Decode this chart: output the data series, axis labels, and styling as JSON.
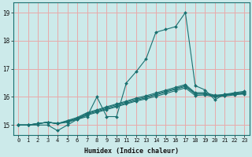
{
  "xlabel": "Humidex (Indice chaleur)",
  "bg_color": "#cceaea",
  "grid_color": "#e8aaaa",
  "line_color": "#1a7070",
  "marker_color": "#1a7070",
  "xlim": [
    -0.5,
    23.5
  ],
  "ylim": [
    14.65,
    19.35
  ],
  "yticks": [
    15,
    16,
    17,
    18,
    19
  ],
  "xticks": [
    0,
    1,
    2,
    3,
    4,
    5,
    6,
    7,
    8,
    9,
    10,
    11,
    12,
    13,
    14,
    15,
    16,
    17,
    18,
    19,
    20,
    21,
    22,
    23
  ],
  "series": [
    [
      15.0,
      15.0,
      15.0,
      15.0,
      14.8,
      15.0,
      15.2,
      15.3,
      16.0,
      15.3,
      15.3,
      16.5,
      16.9,
      17.35,
      18.3,
      18.4,
      18.5,
      19.0,
      16.4,
      16.25,
      15.9,
      16.1,
      16.1,
      16.1
    ],
    [
      15.0,
      15.0,
      15.05,
      15.1,
      15.05,
      15.1,
      15.2,
      15.35,
      15.45,
      15.55,
      15.65,
      15.75,
      15.85,
      15.93,
      16.02,
      16.12,
      16.22,
      16.32,
      16.05,
      16.07,
      16.0,
      16.03,
      16.07,
      16.12
    ],
    [
      15.0,
      15.0,
      15.05,
      15.1,
      15.05,
      15.12,
      15.22,
      15.38,
      15.48,
      15.58,
      15.68,
      15.78,
      15.88,
      15.97,
      16.07,
      16.17,
      16.27,
      16.37,
      16.1,
      16.1,
      16.02,
      16.05,
      16.1,
      16.15
    ],
    [
      15.0,
      15.0,
      15.05,
      15.1,
      15.05,
      15.14,
      15.24,
      15.41,
      15.51,
      15.62,
      15.72,
      15.82,
      15.92,
      16.0,
      16.1,
      16.2,
      16.3,
      16.4,
      16.12,
      16.12,
      16.04,
      16.07,
      16.12,
      16.17
    ],
    [
      15.0,
      15.0,
      15.05,
      15.1,
      15.05,
      15.16,
      15.27,
      15.44,
      15.54,
      15.65,
      15.75,
      15.85,
      15.96,
      16.04,
      16.14,
      16.24,
      16.34,
      16.44,
      16.15,
      16.15,
      16.06,
      16.09,
      16.15,
      16.2
    ]
  ]
}
